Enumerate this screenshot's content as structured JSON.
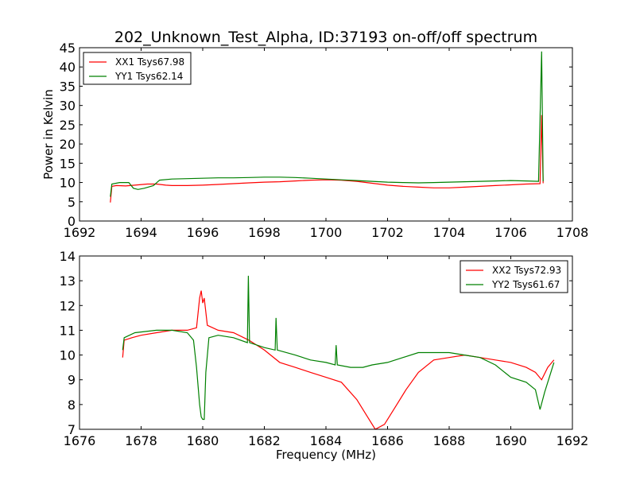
{
  "figure": {
    "title": "202_Unknown_Test_Alpha, ID:37193 on-off/off spectrum"
  },
  "chart_data": [
    {
      "type": "line",
      "title": "202_Unknown_Test_Alpha, ID:37193 on-off/off spectrum",
      "xlabel": "",
      "ylabel": "Power in Kelvin",
      "xlim": [
        1692,
        1708
      ],
      "ylim": [
        0,
        45
      ],
      "xticks": [
        "1692",
        "1694",
        "1696",
        "1698",
        "1700",
        "1702",
        "1704",
        "1706",
        "1708"
      ],
      "yticks": [
        "0",
        "5",
        "10",
        "15",
        "20",
        "25",
        "30",
        "35",
        "40",
        "45"
      ],
      "legend_position": "top-left",
      "grid": false,
      "series": [
        {
          "name": "XX1 Tsys67.98",
          "color": "#ff0000",
          "points": [
            [
              1693.0,
              4.8
            ],
            [
              1693.05,
              9.0
            ],
            [
              1693.2,
              9.2
            ],
            [
              1693.5,
              9.1
            ],
            [
              1693.8,
              9.3
            ],
            [
              1694.2,
              9.6
            ],
            [
              1694.5,
              9.6
            ],
            [
              1694.8,
              9.3
            ],
            [
              1695.0,
              9.2
            ],
            [
              1695.5,
              9.2
            ],
            [
              1696.0,
              9.3
            ],
            [
              1696.5,
              9.5
            ],
            [
              1697.0,
              9.7
            ],
            [
              1697.5,
              9.9
            ],
            [
              1698.0,
              10.1
            ],
            [
              1698.5,
              10.2
            ],
            [
              1699.0,
              10.4
            ],
            [
              1699.5,
              10.6
            ],
            [
              1700.0,
              10.7
            ],
            [
              1700.5,
              10.6
            ],
            [
              1701.0,
              10.3
            ],
            [
              1701.5,
              9.8
            ],
            [
              1702.0,
              9.3
            ],
            [
              1702.5,
              9.0
            ],
            [
              1703.0,
              8.8
            ],
            [
              1703.5,
              8.6
            ],
            [
              1704.0,
              8.6
            ],
            [
              1704.5,
              8.8
            ],
            [
              1705.0,
              9.0
            ],
            [
              1705.5,
              9.2
            ],
            [
              1706.0,
              9.4
            ],
            [
              1706.5,
              9.6
            ],
            [
              1706.95,
              9.7
            ],
            [
              1707.0,
              27.5
            ],
            [
              1707.05,
              9.8
            ]
          ]
        },
        {
          "name": "YY1 Tsys62.14",
          "color": "#008000",
          "points": [
            [
              1693.0,
              6.3
            ],
            [
              1693.05,
              9.6
            ],
            [
              1693.3,
              10.0
            ],
            [
              1693.6,
              10.0
            ],
            [
              1693.75,
              8.5
            ],
            [
              1693.9,
              8.2
            ],
            [
              1694.1,
              8.5
            ],
            [
              1694.4,
              9.2
            ],
            [
              1694.6,
              10.6
            ],
            [
              1695.0,
              10.9
            ],
            [
              1695.5,
              11.0
            ],
            [
              1696.0,
              11.1
            ],
            [
              1696.5,
              11.2
            ],
            [
              1697.0,
              11.2
            ],
            [
              1697.5,
              11.3
            ],
            [
              1698.0,
              11.4
            ],
            [
              1698.5,
              11.4
            ],
            [
              1699.0,
              11.3
            ],
            [
              1699.5,
              11.1
            ],
            [
              1700.0,
              10.9
            ],
            [
              1700.5,
              10.7
            ],
            [
              1701.0,
              10.5
            ],
            [
              1701.5,
              10.3
            ],
            [
              1702.0,
              10.1
            ],
            [
              1702.5,
              10.0
            ],
            [
              1703.0,
              9.9
            ],
            [
              1703.5,
              10.0
            ],
            [
              1704.0,
              10.1
            ],
            [
              1704.5,
              10.2
            ],
            [
              1705.0,
              10.3
            ],
            [
              1705.5,
              10.4
            ],
            [
              1706.0,
              10.5
            ],
            [
              1706.5,
              10.4
            ],
            [
              1706.9,
              10.3
            ],
            [
              1707.0,
              44.0
            ],
            [
              1707.05,
              10.3
            ]
          ]
        }
      ]
    },
    {
      "type": "line",
      "title": "",
      "xlabel": "Frequency (MHz)",
      "ylabel": "",
      "xlim": [
        1676,
        1692
      ],
      "ylim": [
        7,
        14
      ],
      "xticks": [
        "1676",
        "1678",
        "1680",
        "1682",
        "1684",
        "1686",
        "1688",
        "1690",
        "1692"
      ],
      "yticks": [
        "7",
        "8",
        "9",
        "10",
        "11",
        "12",
        "13",
        "14"
      ],
      "legend_position": "top-right",
      "grid": false,
      "series": [
        {
          "name": "XX2 Tsys72.93",
          "color": "#ff0000",
          "points": [
            [
              1677.4,
              9.9
            ],
            [
              1677.45,
              10.6
            ],
            [
              1677.7,
              10.7
            ],
            [
              1678.0,
              10.8
            ],
            [
              1678.5,
              10.9
            ],
            [
              1679.0,
              11.0
            ],
            [
              1679.5,
              11.0
            ],
            [
              1679.8,
              11.1
            ],
            [
              1679.9,
              12.3
            ],
            [
              1679.95,
              12.6
            ],
            [
              1680.0,
              12.1
            ],
            [
              1680.05,
              12.3
            ],
            [
              1680.15,
              11.2
            ],
            [
              1680.5,
              11.0
            ],
            [
              1681.0,
              10.9
            ],
            [
              1681.5,
              10.6
            ],
            [
              1682.0,
              10.2
            ],
            [
              1682.5,
              9.7
            ],
            [
              1683.0,
              9.5
            ],
            [
              1683.5,
              9.3
            ],
            [
              1684.0,
              9.1
            ],
            [
              1684.5,
              8.9
            ],
            [
              1685.0,
              8.2
            ],
            [
              1685.3,
              7.6
            ],
            [
              1685.6,
              7.0
            ],
            [
              1685.9,
              7.2
            ],
            [
              1686.2,
              7.8
            ],
            [
              1686.6,
              8.6
            ],
            [
              1687.0,
              9.3
            ],
            [
              1687.5,
              9.8
            ],
            [
              1688.0,
              9.9
            ],
            [
              1688.5,
              10.0
            ],
            [
              1689.0,
              9.9
            ],
            [
              1689.5,
              9.8
            ],
            [
              1690.0,
              9.7
            ],
            [
              1690.5,
              9.5
            ],
            [
              1690.8,
              9.3
            ],
            [
              1691.0,
              9.0
            ],
            [
              1691.2,
              9.5
            ],
            [
              1691.4,
              9.8
            ]
          ]
        },
        {
          "name": "YY2 Tsys61.67",
          "color": "#008000",
          "points": [
            [
              1677.4,
              10.2
            ],
            [
              1677.45,
              10.7
            ],
            [
              1677.8,
              10.9
            ],
            [
              1678.5,
              11.0
            ],
            [
              1679.0,
              11.0
            ],
            [
              1679.5,
              10.9
            ],
            [
              1679.7,
              10.6
            ],
            [
              1679.8,
              9.5
            ],
            [
              1679.9,
              8.0
            ],
            [
              1679.95,
              7.5
            ],
            [
              1680.0,
              7.4
            ],
            [
              1680.05,
              7.4
            ],
            [
              1680.1,
              9.3
            ],
            [
              1680.2,
              10.7
            ],
            [
              1680.5,
              10.8
            ],
            [
              1681.0,
              10.7
            ],
            [
              1681.45,
              10.5
            ],
            [
              1681.48,
              13.2
            ],
            [
              1681.52,
              10.5
            ],
            [
              1682.0,
              10.3
            ],
            [
              1682.35,
              10.2
            ],
            [
              1682.38,
              11.5
            ],
            [
              1682.42,
              10.2
            ],
            [
              1683.0,
              10.0
            ],
            [
              1683.5,
              9.8
            ],
            [
              1684.0,
              9.7
            ],
            [
              1684.3,
              9.6
            ],
            [
              1684.33,
              10.4
            ],
            [
              1684.37,
              9.6
            ],
            [
              1684.8,
              9.5
            ],
            [
              1685.2,
              9.5
            ],
            [
              1685.5,
              9.6
            ],
            [
              1686.0,
              9.7
            ],
            [
              1686.5,
              9.9
            ],
            [
              1687.0,
              10.1
            ],
            [
              1687.5,
              10.1
            ],
            [
              1688.0,
              10.1
            ],
            [
              1688.5,
              10.0
            ],
            [
              1689.0,
              9.9
            ],
            [
              1689.5,
              9.6
            ],
            [
              1690.0,
              9.1
            ],
            [
              1690.5,
              8.9
            ],
            [
              1690.8,
              8.6
            ],
            [
              1690.95,
              7.8
            ],
            [
              1691.1,
              8.5
            ],
            [
              1691.3,
              9.3
            ],
            [
              1691.4,
              9.7
            ]
          ]
        }
      ]
    }
  ]
}
